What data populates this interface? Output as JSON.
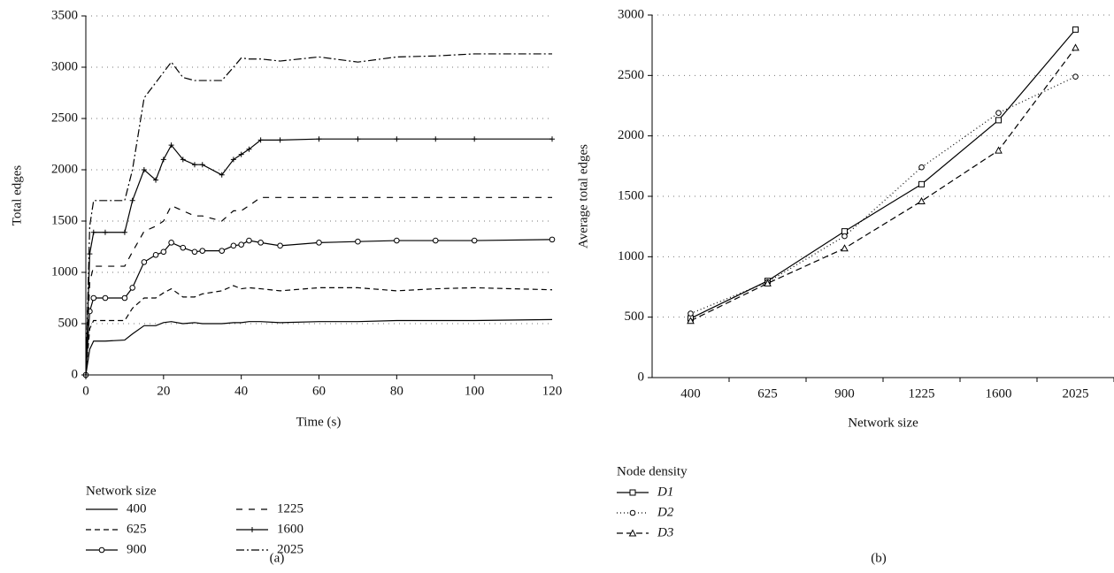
{
  "chart_data": [
    {
      "type": "line",
      "caption": "(a)",
      "x_label": "Time (s)",
      "y_label": "Total edges",
      "x": [
        0,
        1,
        2,
        5,
        10,
        12,
        15,
        18,
        20,
        22,
        25,
        28,
        30,
        35,
        38,
        40,
        42,
        45,
        50,
        60,
        70,
        80,
        90,
        100,
        120
      ],
      "xlim": [
        0,
        120
      ],
      "xticks": [
        0,
        20,
        40,
        60,
        80,
        100,
        120
      ],
      "ylim": [
        0,
        3500
      ],
      "yticks": [
        0,
        500,
        1000,
        1500,
        2000,
        2500,
        3000,
        3500
      ],
      "grid": true,
      "legend_title": "Network size",
      "series": [
        {
          "name": "400",
          "color": "#000",
          "dash": "",
          "marker": "none",
          "values": [
            0,
            250,
            330,
            330,
            340,
            400,
            480,
            480,
            510,
            520,
            500,
            510,
            500,
            500,
            510,
            510,
            520,
            520,
            510,
            520,
            520,
            530,
            530,
            530,
            540
          ]
        },
        {
          "name": "625",
          "color": "#000",
          "dash": "6,4",
          "marker": "none",
          "values": [
            0,
            450,
            530,
            530,
            530,
            650,
            750,
            750,
            800,
            840,
            760,
            760,
            790,
            820,
            870,
            840,
            850,
            840,
            820,
            850,
            850,
            820,
            840,
            850,
            830
          ]
        },
        {
          "name": "900",
          "color": "#000",
          "dash": "",
          "marker": "circle",
          "values": [
            0,
            620,
            750,
            750,
            750,
            850,
            1100,
            1170,
            1200,
            1290,
            1240,
            1200,
            1210,
            1210,
            1260,
            1270,
            1310,
            1290,
            1260,
            1290,
            1300,
            1310,
            1310,
            1310,
            1320
          ]
        },
        {
          "name": "1225",
          "color": "#000",
          "dash": "7,7",
          "marker": "none",
          "values": [
            0,
            900,
            1060,
            1060,
            1060,
            1200,
            1400,
            1450,
            1500,
            1650,
            1600,
            1550,
            1550,
            1500,
            1600,
            1600,
            1650,
            1730,
            1730,
            1730,
            1730,
            1730,
            1730,
            1730,
            1730
          ]
        },
        {
          "name": "1600",
          "color": "#000",
          "dash": "",
          "marker": "plus",
          "values": [
            0,
            1180,
            1390,
            1390,
            1390,
            1700,
            2000,
            1900,
            2100,
            2240,
            2100,
            2050,
            2050,
            1950,
            2100,
            2150,
            2200,
            2290,
            2290,
            2300,
            2300,
            2300,
            2300,
            2300,
            2300
          ]
        },
        {
          "name": "2025",
          "color": "#000",
          "dash": "9,3,2,3",
          "marker": "none",
          "values": [
            0,
            1450,
            1700,
            1700,
            1700,
            2000,
            2700,
            2850,
            2950,
            3050,
            2900,
            2870,
            2870,
            2870,
            3000,
            3090,
            3080,
            3080,
            3060,
            3100,
            3050,
            3100,
            3110,
            3130,
            3130
          ]
        }
      ]
    },
    {
      "type": "line",
      "caption": "(b)",
      "x_label": "Network size",
      "y_label": "Average total edges",
      "categories": [
        "400",
        "625",
        "900",
        "1225",
        "1600",
        "2025"
      ],
      "ylim": [
        0,
        3000
      ],
      "yticks": [
        0,
        500,
        1000,
        1500,
        2000,
        2500,
        3000
      ],
      "grid": true,
      "legend_title": "Node density",
      "series": [
        {
          "name": "D1",
          "color": "#000",
          "dash": "",
          "marker": "square",
          "values": [
            490,
            800,
            1210,
            1600,
            2130,
            2880
          ]
        },
        {
          "name": "D2",
          "color": "#000",
          "dash": "1,3",
          "marker": "circle",
          "values": [
            530,
            790,
            1170,
            1740,
            2190,
            2490
          ]
        },
        {
          "name": "D3",
          "color": "#000",
          "dash": "7,4",
          "marker": "triangle",
          "values": [
            470,
            780,
            1070,
            1460,
            1880,
            2730
          ]
        }
      ]
    }
  ]
}
